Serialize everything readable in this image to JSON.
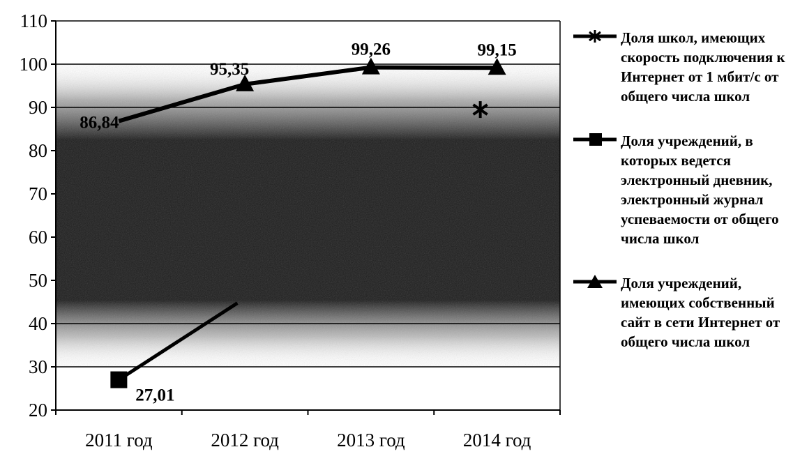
{
  "chart_data": {
    "type": "line",
    "categories": [
      "2011 год",
      "2012 год",
      "2013 год",
      "2014 год"
    ],
    "ylim": [
      20,
      110
    ],
    "yticks": [
      "20",
      "30",
      "40",
      "50",
      "60",
      "70",
      "80",
      "90",
      "100",
      "110"
    ],
    "grid": true,
    "legend_position": "right",
    "series": [
      {
        "name": "Доля школ, имеющих скорость подключения к Интернет от 1 мбит/с от общего числа школ",
        "marker": "asterisk",
        "values": [
          null,
          null,
          null,
          null
        ]
      },
      {
        "name": "Доля учреждений, в которых ведется электронный дневник, электронный журнал успеваемости от общего числа школ",
        "marker": "square",
        "values": [
          27.01,
          null,
          null,
          null
        ],
        "labels": [
          "27,01",
          "",
          "",
          ""
        ]
      },
      {
        "name": "Доля учреждений, имеющих собственный сайт в сети Интернет от общего числа школ",
        "marker": "triangle",
        "values": [
          86.84,
          95.35,
          99.26,
          99.15
        ],
        "labels": [
          "86,84",
          "95,35",
          "99,26",
          "99,15"
        ]
      }
    ]
  }
}
